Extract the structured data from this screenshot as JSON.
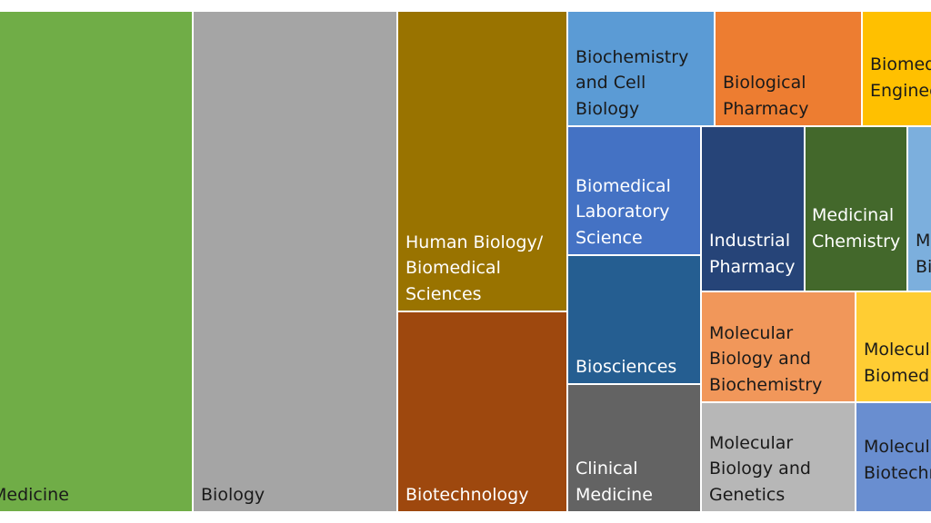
{
  "chart_data": {
    "type": "treemap",
    "title": "",
    "legend": "none",
    "tiles": [
      {
        "label": "Medicine",
        "color": "#70AD47",
        "text_color": "#1a1a1a"
      },
      {
        "label": "Biology",
        "color": "#A5A5A5",
        "text_color": "#1a1a1a"
      },
      {
        "label": "Human Biology/\nBiomedical\nSciences",
        "color": "#997300",
        "text_color": "#ffffff"
      },
      {
        "label": "Biotechnology",
        "color": "#9E480E",
        "text_color": "#ffffff"
      },
      {
        "label": "Biochemistry\nand Cell\nBiology",
        "color": "#5B9BD5",
        "text_color": "#1a1a1a"
      },
      {
        "label": "Biological\nPharmacy",
        "color": "#ED7D31",
        "text_color": "#1a1a1a"
      },
      {
        "label": "Biomedical\nEngineering",
        "color": "#FFC000",
        "text_color": "#1a1a1a"
      },
      {
        "label": "Biomedical\nLaboratory\nScience",
        "color": "#4472C4",
        "text_color": "#ffffff"
      },
      {
        "label": "Biosciences",
        "color": "#255E91",
        "text_color": "#ffffff"
      },
      {
        "label": "Clinical\nMedicine",
        "color": "#636363",
        "text_color": "#ffffff"
      },
      {
        "label": "Industrial\nPharmacy",
        "color": "#264478",
        "text_color": "#ffffff"
      },
      {
        "label": "Medicinal\nChemistry",
        "color": "#43682B",
        "text_color": "#ffffff"
      },
      {
        "label": "Medical\nBiology",
        "color": "#7CAFDD",
        "text_color": "#1a1a1a"
      },
      {
        "label": "Molecular\nBiology and\nBiochemistry",
        "color": "#F1975A",
        "text_color": "#1a1a1a"
      },
      {
        "label": "Molecular\nBiomedicine",
        "color": "#FFCD33",
        "text_color": "#1a1a1a"
      },
      {
        "label": "Molecular\nBiology and\nGenetics",
        "color": "#B7B7B7",
        "text_color": "#1a1a1a"
      },
      {
        "label": "Molecular\nBiotechnology",
        "color": "#698ED0",
        "text_color": "#1a1a1a"
      }
    ]
  }
}
